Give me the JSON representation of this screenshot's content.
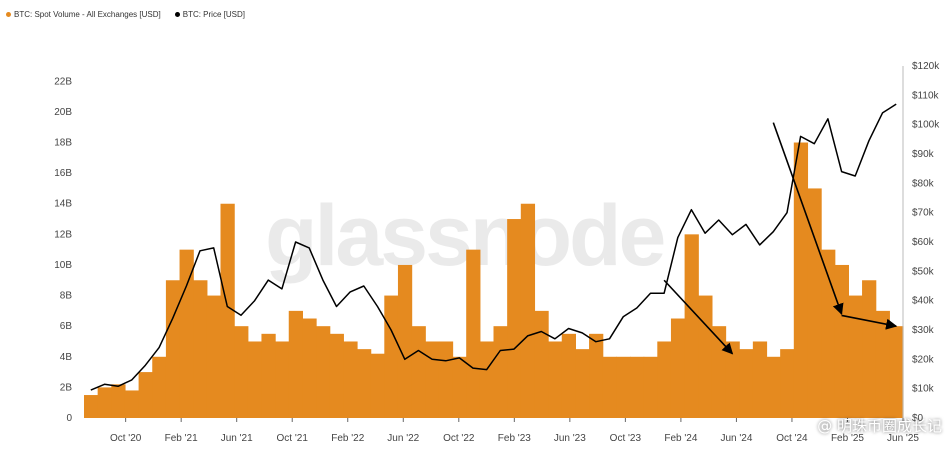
{
  "legend": {
    "volume_label": "BTC: Spot Volume - All Exchanges [USD]",
    "price_label": "BTC: Price [USD]"
  },
  "watermark": {
    "brand": "glassnode",
    "source": "@ 明珠币圈成长记"
  },
  "colors": {
    "volume": "#E58A1F",
    "price": "#000000",
    "arrow": "#000000"
  },
  "chart_data": {
    "type": "area",
    "title": "",
    "xlabel": "",
    "ylabel": "",
    "x_ticks": [
      "Oct '20",
      "Feb '21",
      "Jun '21",
      "Oct '21",
      "Feb '22",
      "Jun '22",
      "Oct '22",
      "Feb '23",
      "Jun '23",
      "Oct '23",
      "Feb '24",
      "Jun '24",
      "Oct '24",
      "Feb '25",
      "Jun '25"
    ],
    "y_left": {
      "ticks": [
        "0",
        "2B",
        "4B",
        "6B",
        "8B",
        "10B",
        "12B",
        "14B",
        "16B",
        "18B",
        "20B",
        "22B"
      ],
      "range": [
        0,
        23
      ]
    },
    "y_right": {
      "ticks": [
        "$0",
        "$10k",
        "$20k",
        "$30k",
        "$40k",
        "$50k",
        "$60k",
        "$70k",
        "$80k",
        "$90k",
        "$100k",
        "$110k",
        "$120k"
      ],
      "range": [
        0,
        120000
      ]
    },
    "series": [
      {
        "name": "BTC: Spot Volume - All Exchanges [USD]",
        "axis": "left",
        "unit": "B USD",
        "x": [
          "2020-07",
          "2020-08",
          "2020-09",
          "2020-10",
          "2020-11",
          "2020-12",
          "2021-01",
          "2021-02",
          "2021-03",
          "2021-04",
          "2021-05",
          "2021-06",
          "2021-07",
          "2021-08",
          "2021-09",
          "2021-10",
          "2021-11",
          "2021-12",
          "2022-01",
          "2022-02",
          "2022-03",
          "2022-04",
          "2022-05",
          "2022-06",
          "2022-07",
          "2022-08",
          "2022-09",
          "2022-10",
          "2022-11",
          "2022-12",
          "2023-01",
          "2023-02",
          "2023-03",
          "2023-04",
          "2023-05",
          "2023-06",
          "2023-07",
          "2023-08",
          "2023-09",
          "2023-10",
          "2023-11",
          "2023-12",
          "2024-01",
          "2024-02",
          "2024-03",
          "2024-04",
          "2024-05",
          "2024-06",
          "2024-07",
          "2024-08",
          "2024-09",
          "2024-10",
          "2024-11",
          "2024-12",
          "2025-01",
          "2025-02",
          "2025-03",
          "2025-04",
          "2025-05",
          "2025-06"
        ],
        "values": [
          1.5,
          2.0,
          2.2,
          1.8,
          3.0,
          4.0,
          9.0,
          11.0,
          9.0,
          8.0,
          14.0,
          6.0,
          5.0,
          5.5,
          5.0,
          7.0,
          6.5,
          6.0,
          5.5,
          5.0,
          4.5,
          4.2,
          8.0,
          10.0,
          6.0,
          5.0,
          5.0,
          4.0,
          11.0,
          5.0,
          6.0,
          13.0,
          14.0,
          7.0,
          5.0,
          5.5,
          4.5,
          5.5,
          4.0,
          4.0,
          4.0,
          4.0,
          5.0,
          6.5,
          12.0,
          8.0,
          6.0,
          5.0,
          4.5,
          5.0,
          4.0,
          4.5,
          18.0,
          15.0,
          11.0,
          10.0,
          8.0,
          9.0,
          7.0,
          6.0
        ]
      },
      {
        "name": "BTC: Price [USD]",
        "axis": "right",
        "unit": "USD",
        "x": [
          "2020-07",
          "2020-08",
          "2020-09",
          "2020-10",
          "2020-11",
          "2020-12",
          "2021-01",
          "2021-02",
          "2021-03",
          "2021-04",
          "2021-05",
          "2021-06",
          "2021-07",
          "2021-08",
          "2021-09",
          "2021-10",
          "2021-11",
          "2021-12",
          "2022-01",
          "2022-02",
          "2022-03",
          "2022-04",
          "2022-05",
          "2022-06",
          "2022-07",
          "2022-08",
          "2022-09",
          "2022-10",
          "2022-11",
          "2022-12",
          "2023-01",
          "2023-02",
          "2023-03",
          "2023-04",
          "2023-05",
          "2023-06",
          "2023-07",
          "2023-08",
          "2023-09",
          "2023-10",
          "2023-11",
          "2023-12",
          "2024-01",
          "2024-02",
          "2024-03",
          "2024-04",
          "2024-05",
          "2024-06",
          "2024-07",
          "2024-08",
          "2024-09",
          "2024-10",
          "2024-11",
          "2024-12",
          "2025-01",
          "2025-02",
          "2025-03",
          "2025-04",
          "2025-05",
          "2025-06"
        ],
        "values": [
          9500,
          11500,
          10800,
          13000,
          18000,
          24000,
          34000,
          45000,
          57000,
          58000,
          38000,
          35000,
          40000,
          47000,
          44000,
          60000,
          58000,
          47000,
          38000,
          43000,
          45000,
          38000,
          30000,
          20000,
          23000,
          20000,
          19500,
          20500,
          17000,
          16500,
          23000,
          23500,
          28000,
          29500,
          27000,
          30500,
          29000,
          26000,
          27000,
          34500,
          37500,
          42500,
          42500,
          61500,
          71000,
          63000,
          67500,
          62500,
          66000,
          59000,
          63500,
          70000,
          96000,
          93500,
          102000,
          84000,
          82500,
          94500,
          104000,
          107000
        ]
      }
    ],
    "annotations": [
      {
        "type": "arrow",
        "from": [
          "2024-01",
          9000
        ],
        "to": [
          "2024-06",
          4200
        ],
        "axis": "left"
      },
      {
        "type": "arrow",
        "from": [
          "2024-09",
          19300
        ],
        "to": [
          "2025-02",
          6800
        ],
        "axis": "left"
      },
      {
        "type": "arrow",
        "from": [
          "2025-02",
          6700
        ],
        "to": [
          "2025-06",
          6000
        ],
        "axis": "left"
      }
    ],
    "grid": false,
    "legend_position": "top-left"
  }
}
